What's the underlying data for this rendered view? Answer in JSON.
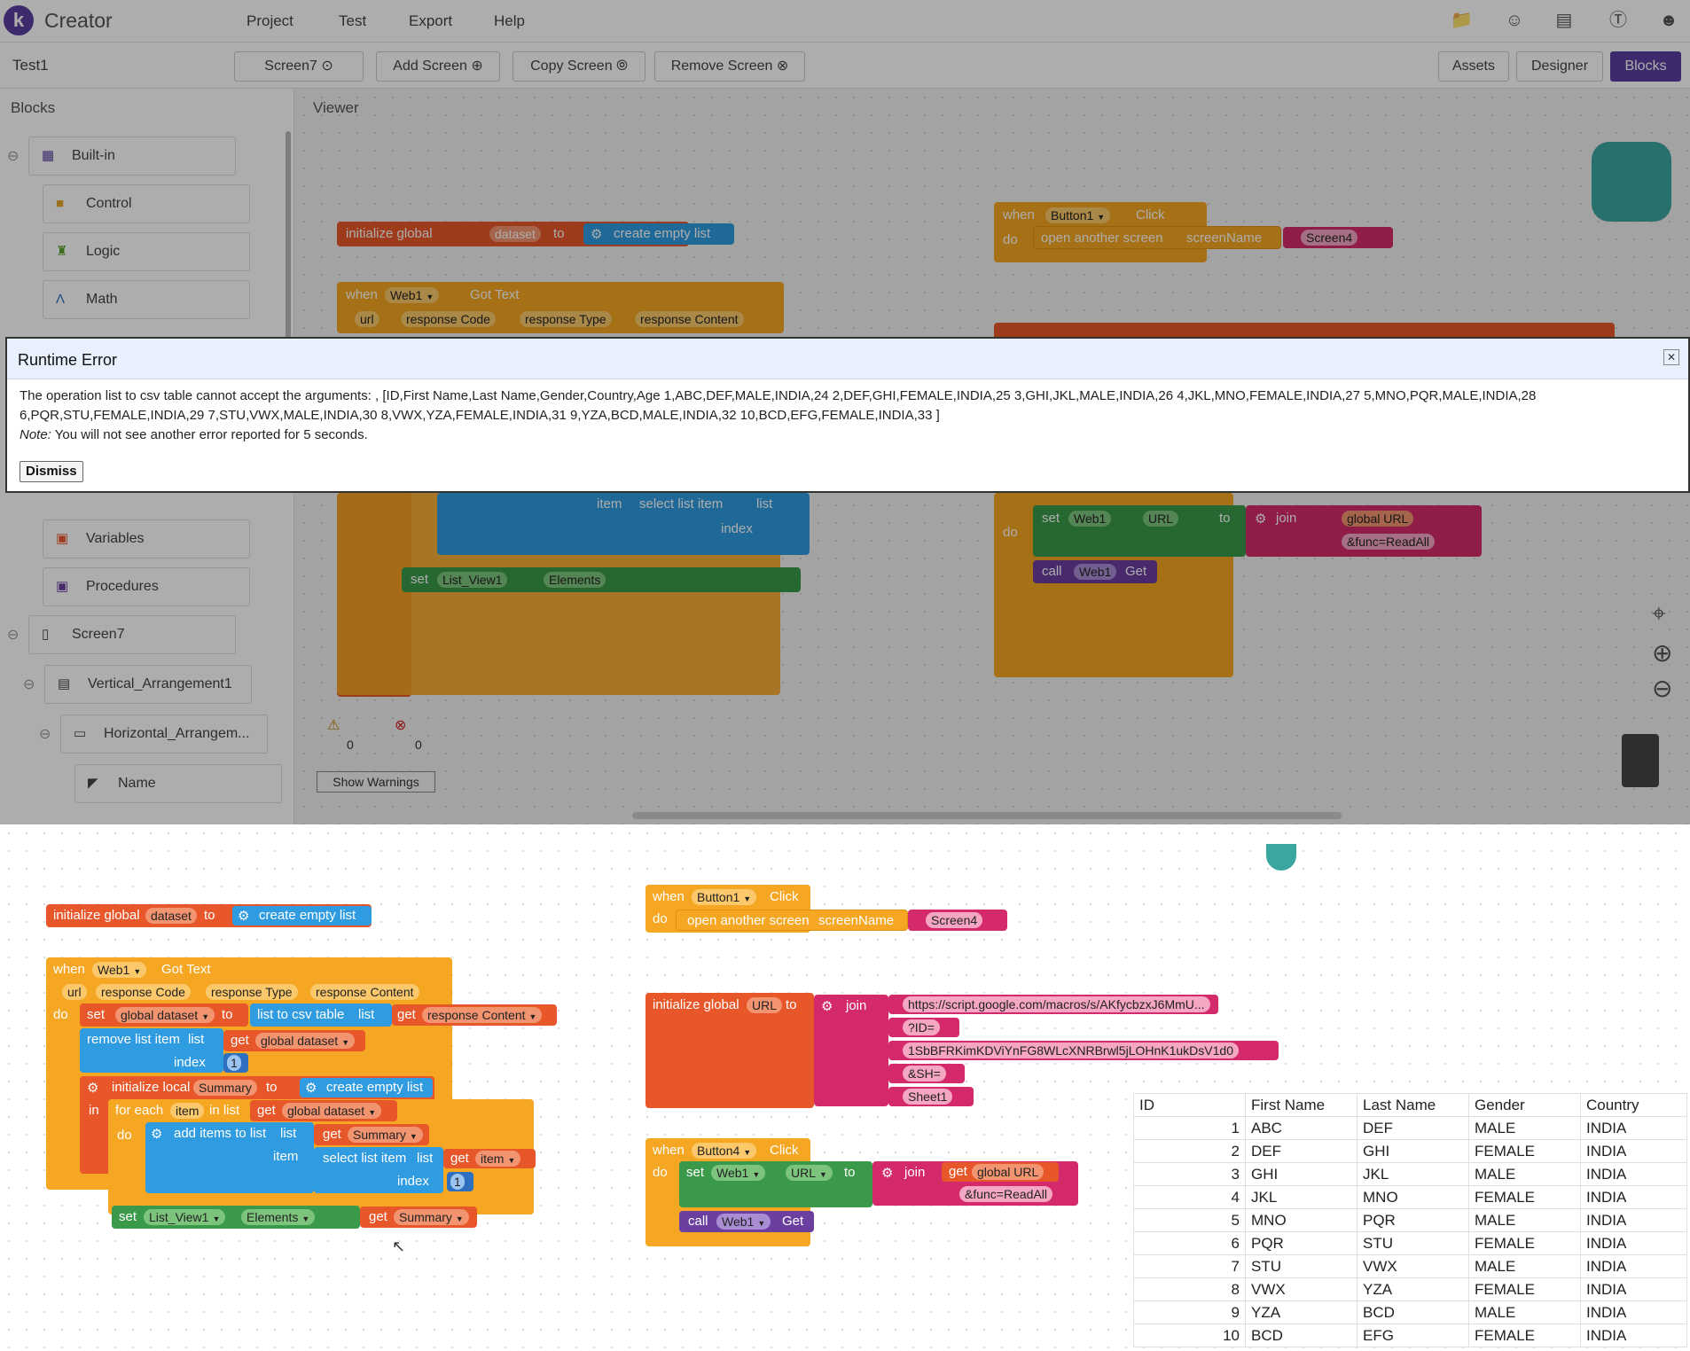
{
  "app": {
    "brand": "Creator",
    "logo_letter": "k",
    "menus": [
      "Project",
      "Test",
      "Export",
      "Help"
    ]
  },
  "toolbar": {
    "project_name": "Test1",
    "screen_select": "Screen7",
    "add_screen": "Add Screen",
    "copy_screen": "Copy Screen",
    "remove_screen": "Remove Screen",
    "assets": "Assets",
    "designer": "Designer",
    "blocks": "Blocks"
  },
  "blocks_panel": {
    "title": "Blocks",
    "items": [
      "Built-in",
      "Control",
      "Logic",
      "Math",
      "Variables",
      "Procedures",
      "Screen7",
      "Vertical_Arrangement1",
      "Horizontal_Arrangem...",
      "Name"
    ]
  },
  "viewer": {
    "title": "Viewer",
    "warnings_count": "0",
    "errors_count": "0",
    "show_warnings": "Show Warnings"
  },
  "error_dialog": {
    "title": "Runtime Error",
    "message_line1": "The operation list to csv table cannot accept the arguments: , [ID,First Name,Last Name,Gender,Country,Age 1,ABC,DEF,MALE,INDIA,24 2,DEF,GHI,FEMALE,INDIA,25 3,GHI,JKL,MALE,INDIA,26 4,JKL,MNO,FEMALE,INDIA,27 5,MNO,PQR,MALE,INDIA,28",
    "message_line2": "6,PQR,STU,FEMALE,INDIA,29 7,STU,VWX,MALE,INDIA,30 8,VWX,YZA,FEMALE,INDIA,31 9,YZA,BCD,MALE,INDIA,32 10,BCD,EFG,FEMALE,INDIA,33 ]",
    "note_label": "Note:",
    "note_text": " You will not see another error reported for 5 seconds.",
    "dismiss": "Dismiss"
  },
  "blocks": {
    "init_dataset": {
      "kw": "initialize global",
      "var": "dataset",
      "to": "to",
      "value": "create empty list"
    },
    "web1_got": {
      "when": "when",
      "comp": "Web1",
      "event": "Got Text",
      "params": [
        "url",
        "response Code",
        "response Type",
        "response Content"
      ],
      "do": "do",
      "set": "set",
      "set_var": "global dataset",
      "set_to": "to",
      "csv": "list to csv table",
      "list": "list",
      "get": "get",
      "resp": "response Content",
      "remove": "remove list item",
      "get_ds": "global dataset",
      "index": "index",
      "one": "1",
      "init_local": "initialize local",
      "summary": "Summary",
      "create_empty": "create empty list",
      "in": "in",
      "foreach": "for each",
      "item": "item",
      "in_list": "in list",
      "add_items": "add items to list",
      "item_lbl": "item",
      "select": "select list item",
      "list_view": "List_View1",
      "elements": "Elements"
    },
    "button1": {
      "when": "when",
      "comp": "Button1",
      "event": "Click",
      "do": "do",
      "open": "open another screen",
      "screenName": "screenName",
      "screen4": "Screen4"
    },
    "url_init": {
      "kw": "initialize global",
      "var": "URL",
      "to": "to",
      "join": "join",
      "parts": [
        "https://script.google.com/macros/s/AKfycbzxJ6MmU...",
        "?ID=",
        "1SbBFRKimKDViYnFG8WLcXNRBrwl5jLOHnK1ukDsV1d0",
        "&SH=",
        "Sheet1"
      ]
    },
    "button4": {
      "when": "when",
      "comp": "Button4",
      "event": "Click",
      "do": "do",
      "set": "set",
      "web": "Web1",
      "url": "URL",
      "to": "to",
      "join": "join",
      "get": "get",
      "global_url": "global URL",
      "readall": "&func=ReadAll",
      "call": "call",
      "get_call": "Get"
    }
  },
  "csv_table": {
    "headers": [
      "ID",
      "First Name",
      "Last Name",
      "Gender",
      "Country"
    ],
    "rows": [
      [
        "1",
        "ABC",
        "DEF",
        "MALE",
        "INDIA"
      ],
      [
        "2",
        "DEF",
        "GHI",
        "FEMALE",
        "INDIA"
      ],
      [
        "3",
        "GHI",
        "JKL",
        "MALE",
        "INDIA"
      ],
      [
        "4",
        "JKL",
        "MNO",
        "FEMALE",
        "INDIA"
      ],
      [
        "5",
        "MNO",
        "PQR",
        "MALE",
        "INDIA"
      ],
      [
        "6",
        "PQR",
        "STU",
        "FEMALE",
        "INDIA"
      ],
      [
        "7",
        "STU",
        "VWX",
        "MALE",
        "INDIA"
      ],
      [
        "8",
        "VWX",
        "YZA",
        "FEMALE",
        "INDIA"
      ],
      [
        "9",
        "YZA",
        "BCD",
        "MALE",
        "INDIA"
      ],
      [
        "10",
        "BCD",
        "EFG",
        "FEMALE",
        "INDIA"
      ]
    ]
  },
  "colors": {
    "brand": "#5b3fa0",
    "variables": "#e8572a",
    "lists": "#2f9be0",
    "event": "#f5a623",
    "text": "#d42a6b",
    "component": "#3a9a4a",
    "call": "#6a3fa0"
  },
  "icons": [
    "folder-icon",
    "gallery-icon",
    "guide-icon",
    "dollar-icon",
    "account-icon",
    "recenter-icon",
    "zoom-in-icon",
    "zoom-out-icon",
    "trash-icon",
    "backpack-icon",
    "warning-icon",
    "error-icon",
    "close-icon"
  ]
}
